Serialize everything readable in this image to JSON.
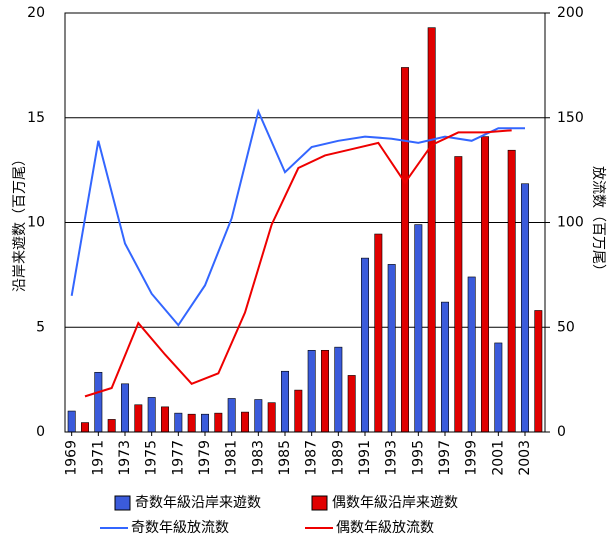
{
  "chart_data": {
    "type": "bar",
    "y_label": "沿岸来遊数（百万尾）",
    "y2_label": "放流数（百万尾）",
    "xlim": [
      1968.5,
      2004.5
    ],
    "xticks": [
      1969,
      1971,
      1973,
      1975,
      1977,
      1979,
      1981,
      1983,
      1985,
      1987,
      1989,
      1991,
      1993,
      1995,
      1997,
      1999,
      2001,
      2003
    ],
    "ylim": [
      0,
      20
    ],
    "yticks": [
      0,
      5,
      10,
      15,
      20
    ],
    "y2lim": [
      0,
      200
    ],
    "y2ticks": [
      0,
      50,
      100,
      150,
      200
    ],
    "grid": true,
    "series": [
      {
        "name": "奇数年級沿岸来遊数",
        "type": "bar",
        "color": "#3b5bdb",
        "axis": "y",
        "x": [
          1969,
          1971,
          1973,
          1975,
          1977,
          1979,
          1981,
          1983,
          1985,
          1987,
          1989,
          1991,
          1993,
          1995,
          1997,
          1999,
          2001,
          2003
        ],
        "values": [
          1.0,
          2.85,
          2.3,
          1.65,
          0.9,
          0.85,
          1.6,
          1.55,
          2.9,
          3.9,
          4.05,
          8.3,
          8.0,
          9.9,
          6.2,
          7.4,
          4.25,
          11.85
        ]
      },
      {
        "name": "偶数年級沿岸来遊数",
        "type": "bar",
        "color": "#e00000",
        "axis": "y",
        "x": [
          1970,
          1972,
          1974,
          1976,
          1978,
          1980,
          1982,
          1984,
          1986,
          1988,
          1990,
          1992,
          1994,
          1996,
          1998,
          2000,
          2002,
          2004
        ],
        "values": [
          0.45,
          0.6,
          1.3,
          1.2,
          0.85,
          0.9,
          0.95,
          1.4,
          2.0,
          3.9,
          2.7,
          9.45,
          17.4,
          19.3,
          13.15,
          14.1,
          13.45,
          5.8
        ]
      },
      {
        "name": "奇数年級放流数",
        "type": "line",
        "color": "#3366ff",
        "axis": "y2",
        "x": [
          1969,
          1971,
          1973,
          1975,
          1977,
          1979,
          1981,
          1983,
          1985,
          1987,
          1989,
          1991,
          1993,
          1995,
          1997,
          1999,
          2001,
          2003
        ],
        "values": [
          65,
          139,
          90,
          66,
          51,
          70,
          102,
          153,
          124,
          136,
          139,
          141,
          140,
          138,
          141,
          139,
          145,
          145
        ]
      },
      {
        "name": "偶数年級放流数",
        "type": "line",
        "color": "#ee0000",
        "axis": "y2",
        "x": [
          1970,
          1972,
          1974,
          1976,
          1978,
          1980,
          1982,
          1984,
          1986,
          1988,
          1990,
          1992,
          1994,
          1996,
          1998,
          2000,
          2002
        ],
        "values": [
          17,
          21,
          52,
          37,
          23,
          28,
          57,
          99,
          126,
          132,
          135,
          138,
          119,
          137,
          143,
          143,
          144
        ]
      }
    ]
  }
}
